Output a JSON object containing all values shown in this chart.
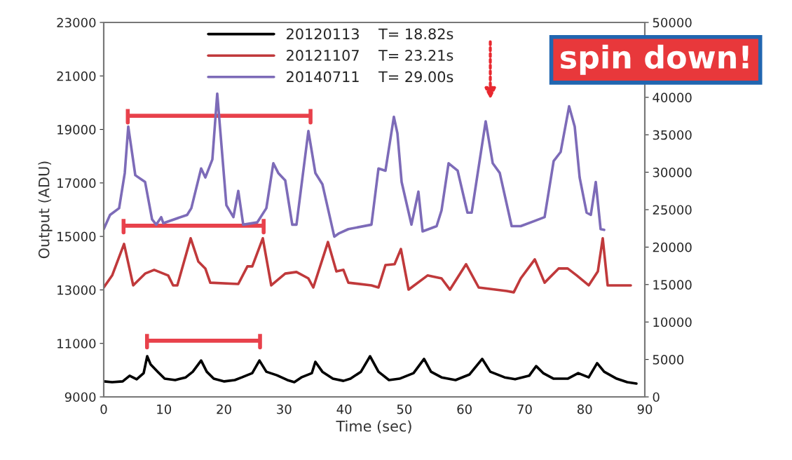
{
  "chart_data": {
    "type": "line",
    "xlabel": "Time (sec)",
    "ylabel": "Output (ADU)",
    "xlim": [
      0,
      90
    ],
    "xticks": [
      0,
      10,
      20,
      30,
      40,
      50,
      60,
      70,
      80,
      90
    ],
    "ylim": [
      9000,
      23000
    ],
    "yticks": [
      9000,
      11000,
      13000,
      15000,
      17000,
      19000,
      21000,
      23000
    ],
    "y2lim": [
      0,
      50000
    ],
    "y2ticks": [
      0,
      5000,
      10000,
      15000,
      20000,
      25000,
      30000,
      35000,
      40000,
      50000
    ],
    "grid": false,
    "legend": "top",
    "marker": "none",
    "line_style": "solid",
    "annotations": [
      "spin down!"
    ],
    "series": [
      {
        "name": "20120113    T= 18.82s",
        "color": "#000000",
        "x": [
          0,
          1.4,
          3.15,
          4.31,
          5.48,
          6.64,
          7.23,
          7.81,
          8.98,
          10.14,
          11.89,
          13.64,
          14.81,
          16.2,
          17.14,
          18.3,
          20.05,
          21.8,
          22.97,
          24.7,
          25.9,
          27.05,
          28.8,
          30.54,
          31.7,
          32.87,
          34.62,
          35.2,
          36.37,
          38.12,
          39.87,
          41.04,
          42.78,
          44.3,
          45.7,
          47.45,
          49.2,
          51.53,
          53.28,
          54.44,
          56.19,
          58.52,
          60.85,
          62.95,
          64.3,
          66.68,
          68.43,
          70.76,
          71.93,
          73.09,
          74.84,
          77.17,
          78.92,
          80.67,
          82.07,
          83.24,
          85.33,
          87.08,
          88.6
        ],
        "values": [
          9580,
          9550,
          9580,
          9790,
          9660,
          9890,
          10520,
          10210,
          9940,
          9680,
          9630,
          9730,
          9940,
          10360,
          9940,
          9680,
          9580,
          9630,
          9730,
          9890,
          10360,
          9940,
          9810,
          9630,
          9550,
          9730,
          9890,
          10310,
          9940,
          9680,
          9600,
          9680,
          9940,
          10520,
          9940,
          9630,
          9680,
          9890,
          10420,
          9940,
          9730,
          9630,
          9840,
          10420,
          9940,
          9730,
          9660,
          9790,
          10150,
          9890,
          9680,
          9680,
          9890,
          9730,
          10260,
          9940,
          9680,
          9550,
          9500
        ]
      },
      {
        "name": "20121107    T= 23.21s",
        "color": "#c0393b",
        "x": [
          0,
          1.4,
          3.38,
          4.9,
          6.88,
          8.39,
          10.72,
          11.54,
          12.24,
          14.46,
          15.74,
          16.9,
          17.72,
          22.38,
          23.9,
          24.71,
          26.46,
          27.86,
          30.19,
          32.06,
          34.04,
          34.86,
          37.3,
          38.7,
          39.87,
          40.69,
          44.53,
          45.7,
          46.86,
          48.38,
          49.43,
          50.71,
          53.86,
          56.19,
          57.59,
          60.27,
          62.37,
          67.03,
          68.2,
          69.36,
          71.7,
          73.33,
          75.66,
          77.17,
          78.69,
          80.67,
          82.19,
          83.0,
          83.82,
          87.67
        ],
        "values": [
          13090,
          13540,
          14720,
          13170,
          13610,
          13750,
          13540,
          13170,
          13170,
          14930,
          14060,
          13800,
          13270,
          13220,
          13880,
          13880,
          14930,
          13170,
          13610,
          13670,
          13430,
          13090,
          14790,
          13690,
          13750,
          13270,
          13170,
          13090,
          13930,
          13960,
          14530,
          13010,
          13540,
          13430,
          13010,
          13960,
          13090,
          12960,
          12910,
          13430,
          14140,
          13270,
          13800,
          13800,
          13540,
          13170,
          13690,
          14930,
          13170,
          13170
        ]
      },
      {
        "name": "20140711    T= 29.00s",
        "color": "#7d6bb8",
        "axis": "y2",
        "x": [
          0,
          1.05,
          2.56,
          3.5,
          4.08,
          5.25,
          6.88,
          8.04,
          8.74,
          9.56,
          9.91,
          13.87,
          14.57,
          16.2,
          16.9,
          18.07,
          18.88,
          20.4,
          21.57,
          22.38,
          23.2,
          25.53,
          27.05,
          28.21,
          29.03,
          30.19,
          31.36,
          32.06,
          34.04,
          35.2,
          36.37,
          38.35,
          39.05,
          40.69,
          44.53,
          45.7,
          46.86,
          48.26,
          48.85,
          49.55,
          51.18,
          52.34,
          53.04,
          55.37,
          56.19,
          57.36,
          58.87,
          60.5,
          61.2,
          63.53,
          64.7,
          65.87,
          67.85,
          69.36,
          73.33,
          74.84,
          76.0,
          77.41,
          78.34,
          79.16,
          80.32,
          81.02,
          81.84,
          82.65,
          83.24
        ],
        "values": [
          22400,
          24300,
          25200,
          29900,
          36100,
          29600,
          28700,
          23700,
          23000,
          24000,
          23200,
          24300,
          25200,
          30500,
          29300,
          31700,
          40500,
          25600,
          24000,
          27500,
          23000,
          23300,
          25200,
          31200,
          29900,
          28900,
          23000,
          23000,
          35500,
          29900,
          28400,
          21400,
          21800,
          22400,
          23000,
          30500,
          30200,
          37400,
          35200,
          28700,
          23000,
          27400,
          22100,
          22800,
          24900,
          31200,
          30200,
          24600,
          24600,
          36800,
          31200,
          29900,
          22800,
          22800,
          24000,
          31500,
          32700,
          38800,
          36100,
          29300,
          24600,
          24300,
          28700,
          22400,
          22300
        ]
      }
    ]
  }
}
